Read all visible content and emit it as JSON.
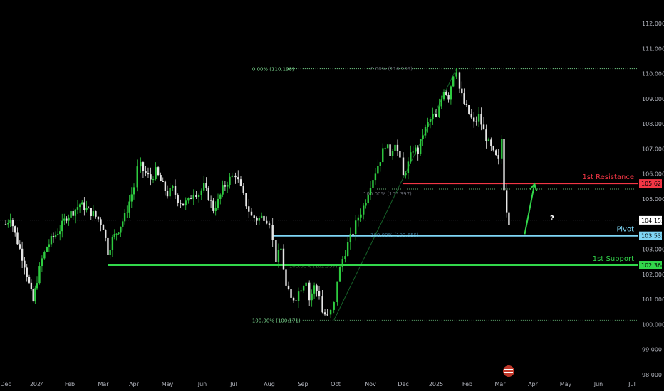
{
  "chart_data": {
    "type": "candlestick",
    "instrument_note": "",
    "y_axis": {
      "position": "right",
      "ylim": [
        98.0,
        112.0
      ],
      "ticks": [
        "112.000",
        "111.000",
        "110.000",
        "109.000",
        "108.000",
        "107.000",
        "106.000",
        "105.000",
        "103.000",
        "102.000",
        "101.000",
        "100.000",
        "99.000",
        "98.000"
      ],
      "tick_values": [
        112,
        111,
        110,
        109,
        108,
        107,
        106,
        105,
        103,
        102,
        101,
        100,
        99,
        98
      ]
    },
    "x_axis": {
      "labels": [
        "Dec",
        "2024",
        "Feb",
        "Mar",
        "Apr",
        "May",
        "Jun",
        "Jul",
        "Aug",
        "Sep",
        "Oct",
        "Nov",
        "Dec",
        "2025",
        "Feb",
        "Mar",
        "Apr",
        "May",
        "Jun",
        "Jul"
      ],
      "label_months": [
        0,
        1,
        2,
        3,
        4,
        5,
        6,
        7,
        8,
        9,
        10,
        11,
        12,
        13,
        14,
        15,
        16,
        17,
        18,
        19
      ]
    },
    "current_price": {
      "label": "104.153",
      "value": 104.153,
      "color": "#ffffff"
    },
    "levels": [
      {
        "name": "1st Resistance",
        "badge": "105.621",
        "value": 105.621,
        "color": "#f23645",
        "start_month": 12.0
      },
      {
        "name": "Pivot",
        "badge": "103.535",
        "value": 103.535,
        "color": "#7fd6f5",
        "start_month": 8.1
      },
      {
        "name": "1st Support",
        "badge": "102.364",
        "value": 102.364,
        "color": "#32d74b",
        "start_month": 3.15
      }
    ],
    "fib_levels": [
      {
        "label": "0.00% (110.198)",
        "value": 110.198,
        "side": "left"
      },
      {
        "label": "0.00% (110.209)",
        "value": 110.209,
        "side": "mid"
      },
      {
        "label": "100.00% (105.397)",
        "value": 105.397,
        "side": "mid"
      },
      {
        "label": "100.00% (103.555)",
        "value": 103.555,
        "side": "mid"
      },
      {
        "label": "100.00% (102.357)",
        "value": 102.357,
        "side": "mid"
      },
      {
        "label": "100.00% (100.171)",
        "value": 100.171,
        "side": "left"
      }
    ],
    "annotation": {
      "text": "?",
      "arrow_from": [
        15.75,
        103.6
      ],
      "arrow_to": [
        16.05,
        105.6
      ]
    },
    "series": [
      {
        "name": "",
        "monthly_path": [
          [
            0.0,
            104.0
          ],
          [
            0.15,
            104.3
          ],
          [
            0.3,
            103.6
          ],
          [
            0.45,
            103.0
          ],
          [
            0.6,
            102.4
          ],
          [
            0.75,
            101.6
          ],
          [
            0.88,
            100.9
          ],
          [
            1.0,
            101.8
          ],
          [
            1.15,
            102.6
          ],
          [
            1.3,
            103.1
          ],
          [
            1.5,
            103.5
          ],
          [
            1.7,
            103.8
          ],
          [
            1.9,
            104.3
          ],
          [
            2.1,
            104.5
          ],
          [
            2.3,
            104.8
          ],
          [
            2.5,
            104.6
          ],
          [
            2.7,
            104.4
          ],
          [
            2.85,
            104.2
          ],
          [
            3.0,
            103.9
          ],
          [
            3.15,
            102.9
          ],
          [
            3.3,
            103.4
          ],
          [
            3.5,
            103.8
          ],
          [
            3.7,
            104.3
          ],
          [
            3.85,
            104.9
          ],
          [
            4.0,
            105.5
          ],
          [
            4.1,
            106.2
          ],
          [
            4.2,
            106.3
          ],
          [
            4.35,
            106.0
          ],
          [
            4.5,
            105.8
          ],
          [
            4.65,
            106.1
          ],
          [
            4.8,
            105.7
          ],
          [
            5.0,
            105.2
          ],
          [
            5.15,
            105.4
          ],
          [
            5.3,
            105.0
          ],
          [
            5.45,
            104.8
          ],
          [
            5.6,
            104.9
          ],
          [
            5.75,
            105.3
          ],
          [
            5.9,
            105.2
          ],
          [
            6.05,
            105.5
          ],
          [
            6.2,
            105.1
          ],
          [
            6.35,
            104.6
          ],
          [
            6.5,
            104.9
          ],
          [
            6.65,
            105.4
          ],
          [
            6.8,
            105.7
          ],
          [
            6.95,
            105.9
          ],
          [
            7.05,
            106.0
          ],
          [
            7.2,
            105.4
          ],
          [
            7.35,
            104.8
          ],
          [
            7.5,
            104.3
          ],
          [
            7.65,
            104.2
          ],
          [
            7.85,
            104.3
          ],
          [
            8.0,
            104.1
          ],
          [
            8.1,
            103.3
          ],
          [
            8.2,
            102.6
          ],
          [
            8.35,
            103.0
          ],
          [
            8.5,
            101.5
          ],
          [
            8.65,
            101.0
          ],
          [
            8.8,
            101.1
          ],
          [
            8.95,
            101.5
          ],
          [
            9.1,
            101.8
          ],
          [
            9.2,
            101.0
          ],
          [
            9.35,
            101.5
          ],
          [
            9.5,
            101.2
          ],
          [
            9.6,
            100.5
          ],
          [
            9.75,
            100.3
          ],
          [
            9.85,
            100.5
          ],
          [
            9.95,
            100.8
          ],
          [
            10.05,
            101.8
          ],
          [
            10.2,
            102.6
          ],
          [
            10.35,
            103.2
          ],
          [
            10.5,
            103.7
          ],
          [
            10.65,
            104.3
          ],
          [
            10.8,
            104.7
          ],
          [
            11.0,
            105.6
          ],
          [
            11.15,
            106.1
          ],
          [
            11.3,
            106.6
          ],
          [
            11.45,
            107.2
          ],
          [
            11.6,
            106.8
          ],
          [
            11.75,
            107.3
          ],
          [
            11.9,
            106.5
          ],
          [
            12.0,
            105.9
          ],
          [
            12.15,
            106.4
          ],
          [
            12.3,
            107.0
          ],
          [
            12.45,
            106.9
          ],
          [
            12.6,
            107.6
          ],
          [
            12.75,
            108.0
          ],
          [
            12.9,
            108.3
          ],
          [
            13.0,
            108.2
          ],
          [
            13.1,
            108.6
          ],
          [
            13.25,
            109.4
          ],
          [
            13.4,
            109.1
          ],
          [
            13.55,
            110.0
          ],
          [
            13.65,
            110.2
          ],
          [
            13.75,
            109.4
          ],
          [
            13.9,
            108.8
          ],
          [
            14.05,
            108.4
          ],
          [
            14.2,
            108.0
          ],
          [
            14.35,
            108.3
          ],
          [
            14.5,
            107.7
          ],
          [
            14.65,
            107.2
          ],
          [
            14.8,
            106.8
          ],
          [
            14.95,
            106.5
          ],
          [
            15.05,
            107.4
          ],
          [
            15.12,
            105.5
          ],
          [
            15.2,
            104.6
          ],
          [
            15.27,
            104.15
          ]
        ]
      }
    ]
  },
  "logo_note": "TradingView"
}
